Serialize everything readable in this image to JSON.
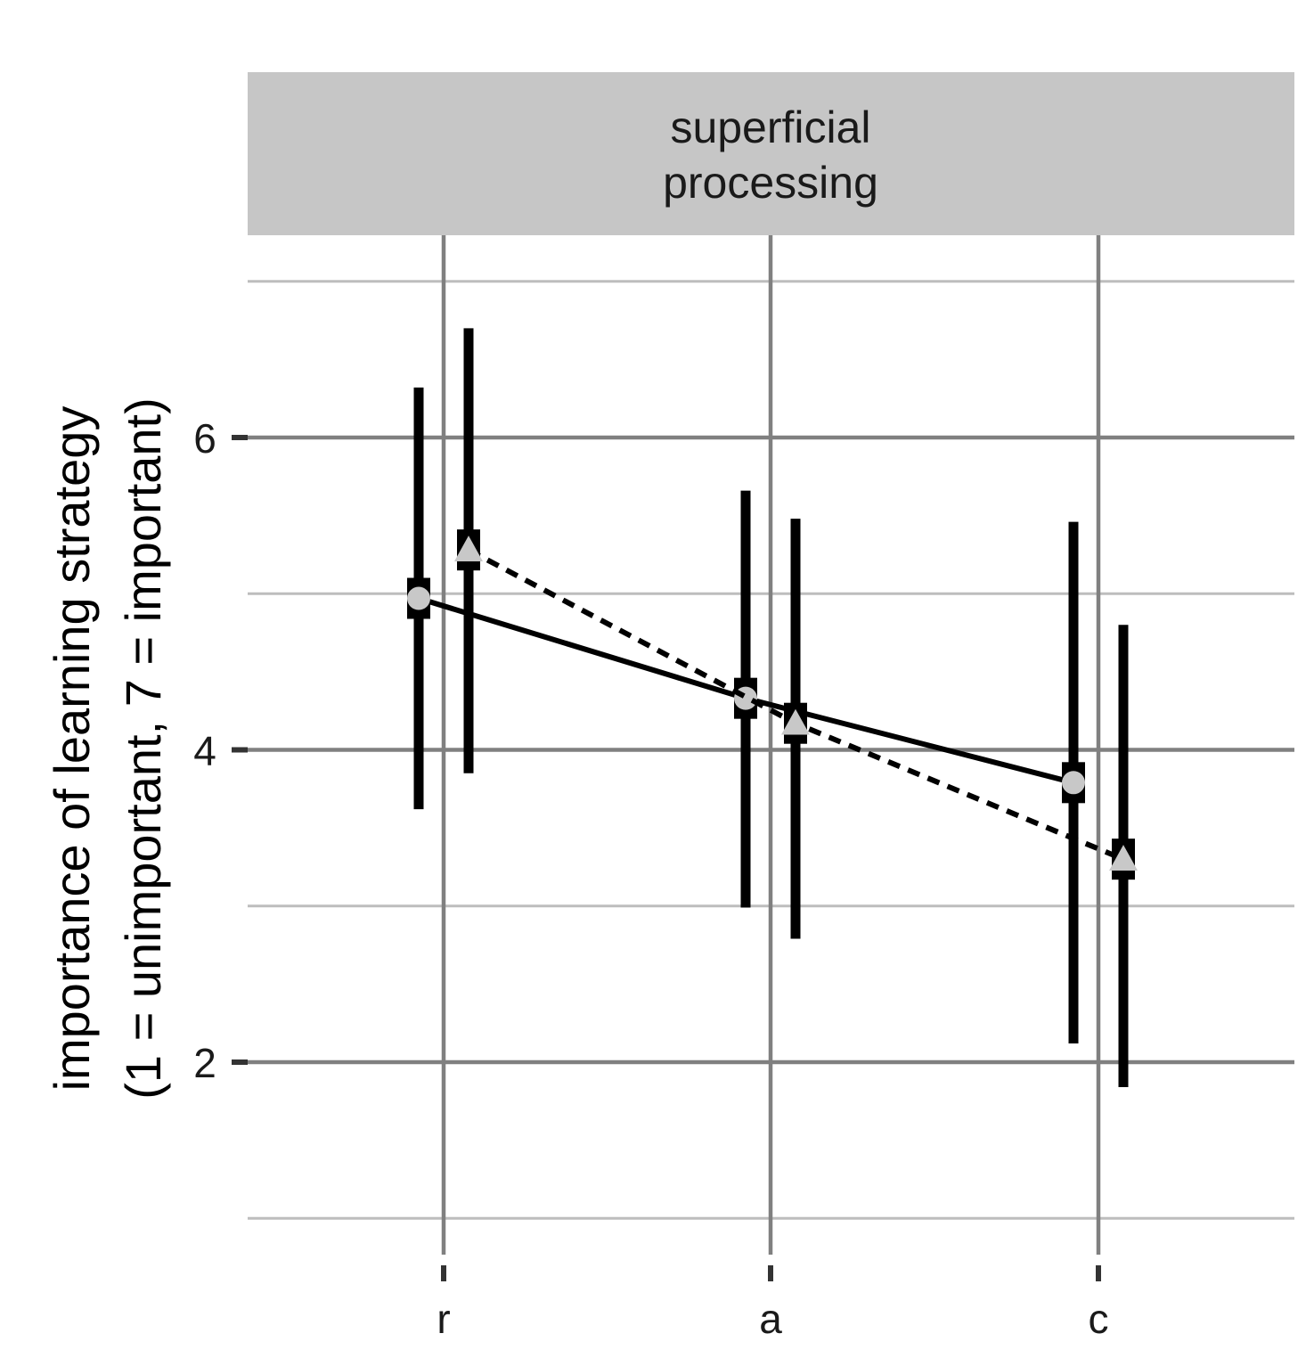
{
  "chart_data": {
    "type": "line",
    "facet": "superficial\nprocessing",
    "ylabel": "importance of learning strategy\n(1 = unimportant, 7 = important)",
    "xlabel": "",
    "categories": [
      "r",
      "a",
      "c"
    ],
    "ylim": [
      0.9,
      7.5
    ],
    "yticks": [
      2,
      4,
      6
    ],
    "ygrid_minor": [
      1,
      3,
      5,
      7
    ],
    "grid": true,
    "legend": "none",
    "series": [
      {
        "marker": "circle",
        "linestyle": "solid",
        "values": [
          4.97,
          4.33,
          3.79
        ],
        "error_low": [
          3.62,
          2.99,
          2.12
        ],
        "error_high": [
          6.32,
          5.66,
          5.46
        ]
      },
      {
        "marker": "triangle",
        "linestyle": "dashed",
        "values": [
          5.28,
          4.17,
          3.3
        ],
        "error_low": [
          3.85,
          2.79,
          1.84
        ],
        "error_high": [
          6.7,
          5.48,
          4.8
        ]
      }
    ],
    "colors": {
      "bar": "#000000",
      "marker_fill": "#c8c8c8",
      "strip": "#c6c6c6"
    }
  }
}
